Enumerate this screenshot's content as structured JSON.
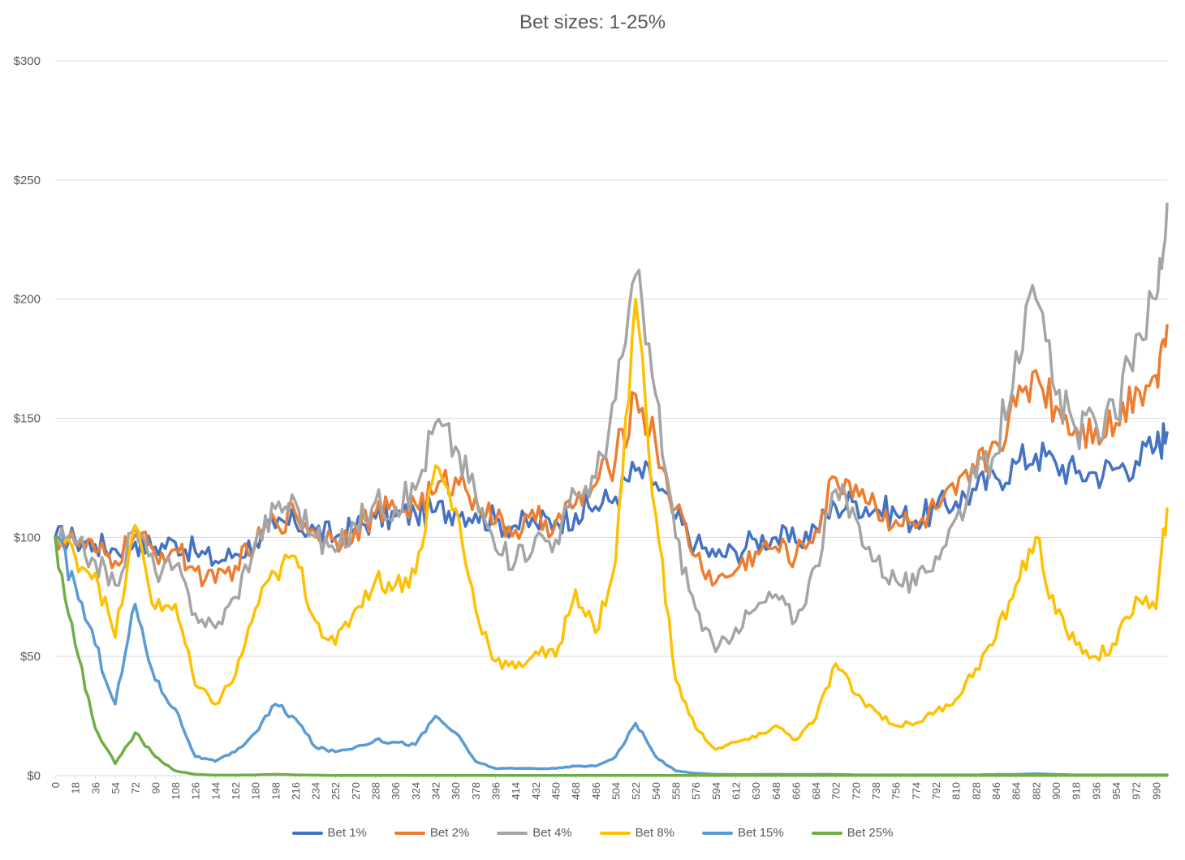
{
  "chart_data": {
    "type": "line",
    "title": "Bet sizes: 1-25%",
    "xlabel": "",
    "ylabel": "",
    "ylim": [
      0,
      300
    ],
    "xlim": [
      0,
      1000
    ],
    "y_ticks": [
      "$0",
      "$50",
      "$100",
      "$150",
      "$200",
      "$250",
      "$300"
    ],
    "y_tick_values": [
      0,
      50,
      100,
      150,
      200,
      250,
      300
    ],
    "x_ticks": [
      0,
      18,
      36,
      54,
      72,
      90,
      108,
      126,
      144,
      162,
      180,
      198,
      216,
      234,
      252,
      270,
      288,
      306,
      324,
      342,
      360,
      378,
      396,
      414,
      432,
      450,
      468,
      486,
      504,
      522,
      540,
      558,
      576,
      594,
      612,
      630,
      648,
      666,
      684,
      702,
      720,
      738,
      756,
      774,
      792,
      810,
      828,
      846,
      864,
      882,
      900,
      918,
      936,
      954,
      972,
      990
    ],
    "grid": true,
    "legend_position": "bottom",
    "series": [
      {
        "name": "Bet 1%",
        "color": "#4472C4",
        "x": [
          0,
          18,
          36,
          54,
          72,
          90,
          108,
          126,
          144,
          162,
          180,
          198,
          216,
          234,
          252,
          270,
          288,
          306,
          324,
          342,
          360,
          378,
          396,
          414,
          432,
          450,
          468,
          486,
          504,
          522,
          540,
          558,
          576,
          594,
          612,
          630,
          648,
          666,
          684,
          702,
          720,
          738,
          756,
          774,
          792,
          810,
          828,
          846,
          864,
          882,
          900,
          918,
          936,
          954,
          972,
          990,
          1000
        ],
        "values": [
          100,
          99,
          97,
          95,
          98,
          96,
          98,
          94,
          90,
          93,
          98,
          104,
          106,
          103,
          100,
          104,
          108,
          109,
          110,
          111,
          112,
          110,
          107,
          105,
          106,
          107,
          110,
          113,
          117,
          128,
          123,
          108,
          97,
          92,
          94,
          99,
          100,
          98,
          104,
          113,
          115,
          112,
          110,
          107,
          112,
          115,
          120,
          125,
          131,
          135,
          131,
          127,
          127,
          129,
          132,
          138,
          144
        ]
      },
      {
        "name": "Bet 2%",
        "color": "#ED7D31",
        "x": [
          0,
          18,
          36,
          54,
          72,
          90,
          108,
          126,
          144,
          162,
          180,
          198,
          216,
          234,
          252,
          270,
          288,
          306,
          324,
          342,
          360,
          378,
          396,
          414,
          432,
          450,
          468,
          486,
          504,
          522,
          540,
          558,
          576,
          594,
          612,
          630,
          648,
          666,
          684,
          702,
          720,
          738,
          756,
          774,
          792,
          810,
          828,
          846,
          864,
          882,
          900,
          918,
          936,
          954,
          972,
          990,
          1000
        ],
        "values": [
          100,
          98,
          94,
          90,
          101,
          93,
          95,
          86,
          81,
          88,
          97,
          107,
          110,
          102,
          99,
          104,
          110,
          111,
          114,
          119,
          125,
          117,
          106,
          103,
          107,
          106,
          114,
          122,
          133,
          160,
          140,
          112,
          92,
          81,
          86,
          94,
          96,
          92,
          103,
          125,
          122,
          113,
          107,
          104,
          112,
          118,
          128,
          140,
          155,
          170,
          155,
          146,
          146,
          148,
          163,
          168,
          189
        ]
      },
      {
        "name": "Bet 4%",
        "color": "#A5A5A5",
        "x": [
          0,
          18,
          36,
          54,
          72,
          90,
          108,
          126,
          144,
          162,
          180,
          198,
          216,
          234,
          252,
          270,
          288,
          306,
          324,
          342,
          360,
          378,
          396,
          414,
          432,
          450,
          468,
          486,
          504,
          522,
          540,
          558,
          576,
          594,
          612,
          630,
          648,
          666,
          684,
          702,
          720,
          738,
          756,
          774,
          792,
          810,
          828,
          846,
          864,
          882,
          900,
          918,
          936,
          954,
          972,
          990,
          1000
        ],
        "values": [
          100,
          97,
          90,
          80,
          105,
          86,
          88,
          68,
          62,
          75,
          98,
          112,
          115,
          100,
          94,
          105,
          115,
          113,
          120,
          148,
          138,
          118,
          95,
          90,
          100,
          99,
          118,
          125,
          158,
          210,
          160,
          100,
          70,
          52,
          62,
          70,
          76,
          65,
          88,
          120,
          108,
          90,
          82,
          80,
          92,
          108,
          125,
          135,
          178,
          200,
          160,
          145,
          148,
          150,
          185,
          200,
          240
        ]
      },
      {
        "name": "Bet 8%",
        "color": "#FFC000",
        "x": [
          0,
          18,
          36,
          54,
          72,
          90,
          108,
          126,
          144,
          162,
          180,
          198,
          216,
          234,
          252,
          270,
          288,
          306,
          324,
          342,
          360,
          378,
          396,
          414,
          432,
          450,
          468,
          486,
          504,
          522,
          540,
          558,
          576,
          594,
          612,
          630,
          648,
          666,
          684,
          702,
          720,
          738,
          756,
          774,
          792,
          810,
          828,
          846,
          864,
          882,
          900,
          918,
          936,
          954,
          972,
          990,
          1000
        ],
        "values": [
          100,
          92,
          85,
          58,
          105,
          70,
          72,
          38,
          30,
          42,
          70,
          85,
          92,
          65,
          55,
          70,
          82,
          80,
          85,
          130,
          112,
          70,
          48,
          45,
          52,
          50,
          78,
          60,
          90,
          200,
          110,
          40,
          20,
          11,
          14,
          16,
          21,
          15,
          24,
          47,
          34,
          27,
          21,
          22,
          27,
          32,
          45,
          58,
          80,
          100,
          68,
          55,
          50,
          55,
          75,
          70,
          112
        ]
      },
      {
        "name": "Bet 15%",
        "color": "#5B9BD5",
        "x": [
          0,
          18,
          36,
          54,
          72,
          90,
          108,
          126,
          144,
          162,
          180,
          198,
          216,
          234,
          252,
          270,
          288,
          306,
          324,
          342,
          360,
          378,
          396,
          414,
          432,
          450,
          468,
          486,
          504,
          522,
          540,
          558,
          576,
          594,
          612,
          630,
          648,
          666,
          684,
          702,
          720,
          738,
          756,
          774,
          792,
          810,
          828,
          846,
          864,
          882,
          900,
          918,
          936,
          954,
          972,
          990,
          1000
        ],
        "values": [
          100,
          80,
          55,
          30,
          72,
          40,
          28,
          8,
          6,
          10,
          18,
          30,
          24,
          12,
          10,
          12,
          15,
          14,
          13,
          25,
          18,
          6,
          3,
          3,
          3,
          3,
          4,
          4,
          8,
          22,
          8,
          2,
          1,
          0.5,
          0.5,
          0.5,
          0.5,
          0.5,
          0.5,
          0.5,
          0.3,
          0.3,
          0.3,
          0.3,
          0.3,
          0.3,
          0.3,
          0.5,
          0.5,
          0.8,
          0.5,
          0.3,
          0.3,
          0.3,
          0.3,
          0.3,
          0.3
        ]
      },
      {
        "name": "Bet 25%",
        "color": "#70AD47",
        "x": [
          0,
          18,
          36,
          54,
          72,
          90,
          108,
          126,
          144,
          162,
          180,
          198,
          216,
          234,
          252,
          270,
          288,
          306,
          324,
          342,
          360,
          378,
          396,
          414,
          432,
          450,
          468,
          486,
          504,
          522,
          540,
          558,
          576,
          594,
          612,
          630,
          648,
          666,
          684,
          702,
          720,
          738,
          756,
          774,
          792,
          810,
          828,
          846,
          864,
          882,
          900,
          918,
          936,
          954,
          972,
          990,
          1000
        ],
        "values": [
          100,
          55,
          20,
          5,
          18,
          8,
          2,
          0.5,
          0.2,
          0.2,
          0.3,
          0.5,
          0.3,
          0.2,
          0.1,
          0.1,
          0.1,
          0.1,
          0.1,
          0.1,
          0.1,
          0.1,
          0.1,
          0.1,
          0.1,
          0.1,
          0.1,
          0.1,
          0.1,
          0.1,
          0.1,
          0.1,
          0.1,
          0.1,
          0.1,
          0.1,
          0.1,
          0.1,
          0.1,
          0.1,
          0.1,
          0.1,
          0.1,
          0.1,
          0.1,
          0.1,
          0.1,
          0.1,
          0.1,
          0.1,
          0.1,
          0.1,
          0.1,
          0.1,
          0.1,
          0.1,
          0.1
        ]
      }
    ]
  }
}
